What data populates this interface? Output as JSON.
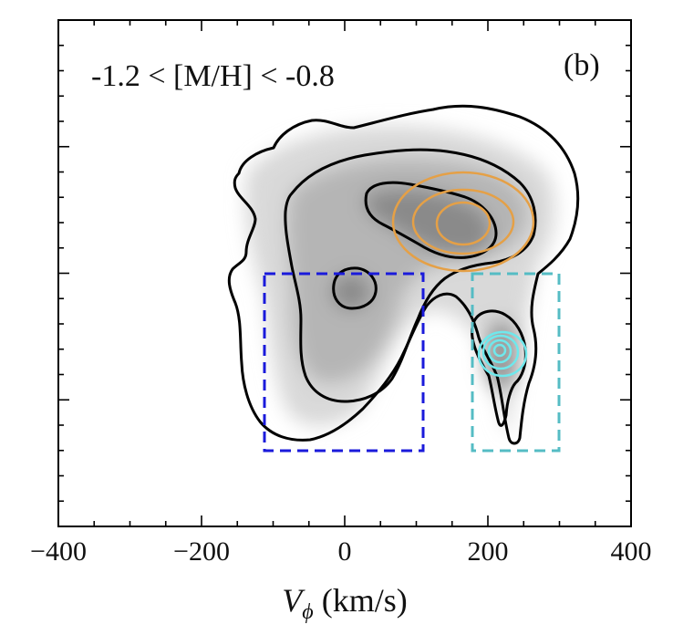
{
  "chart_data": {
    "type": "contour",
    "panel_label": "(b)",
    "metallicity_label": "-1.2 < [M/H] < -0.8",
    "xlabel_symbol": "V",
    "xlabel_subscript": "ϕ",
    "xlabel_unit": " (km/s)",
    "ylabel": "",
    "xlim": [
      -400,
      400
    ],
    "x_ticks": [
      -400,
      -200,
      0,
      200,
      400
    ],
    "x_tick_labels": [
      "−400",
      "−200",
      "0",
      "200",
      "400"
    ],
    "boxes": [
      {
        "name": "",
        "x": [
          -110,
          110
        ],
        "y_frac": [
          0.15,
          0.5
        ],
        "color": "#1a1adb",
        "dash": true
      },
      {
        "name": "",
        "x": [
          180,
          300
        ],
        "y_frac": [
          0.15,
          0.5
        ],
        "color": "#55bcc4",
        "dash": true
      }
    ],
    "orange_ellipses_center": [
      170,
      0.745
    ],
    "cyan_circles_center": [
      220,
      0.335
    ],
    "colors": {
      "contour": "#000000",
      "orange": "#e5a046",
      "cyan": "#6fe8ec",
      "blue_box": "#1a1adb",
      "cyan_box": "#55bcc4",
      "density": "#808080"
    }
  }
}
